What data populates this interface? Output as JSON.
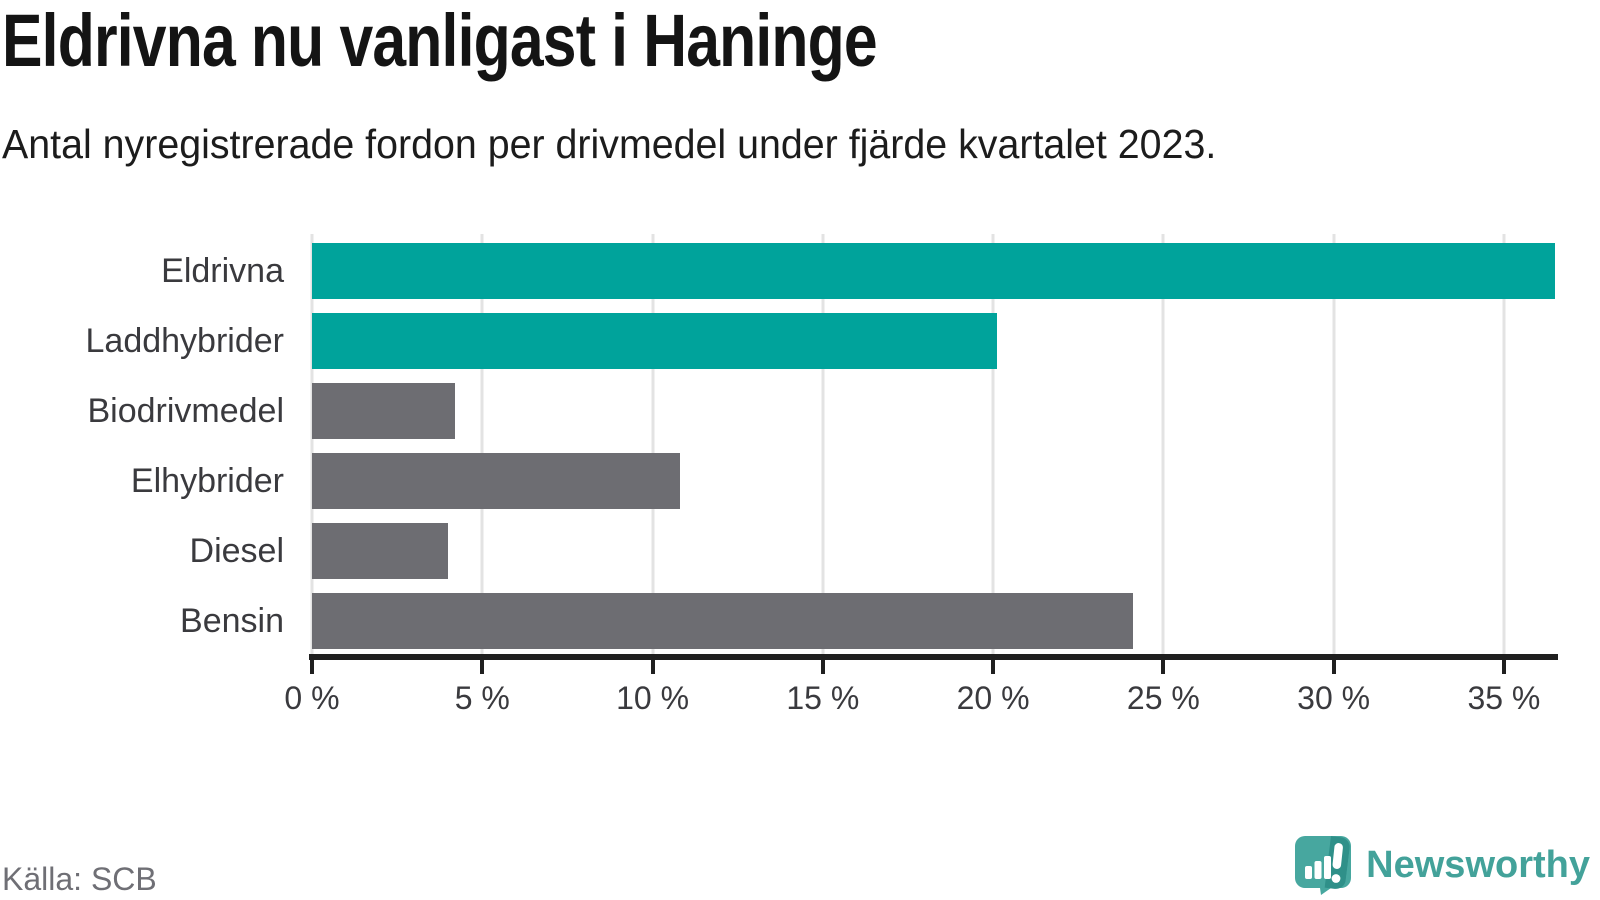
{
  "header": {
    "title": "Eldrivna nu vanligast i Haninge",
    "subtitle": "Antal nyregistrerade fordon per drivmedel under fjärde kvartalet 2023."
  },
  "footer": {
    "source": "Källa: SCB",
    "brand_name": "Newsworthy",
    "brand_icon": "newsworthy-speech-bubble-chart-icon"
  },
  "colors": {
    "teal": "#00a39b",
    "gray": "#6d6d72",
    "grid": "#e3e3e3",
    "axis": "#1f1f1f",
    "brand_teal": "#43a29a",
    "icon_teal": "#47a79f",
    "icon_teal_dark": "#2f9089"
  },
  "chart_data": {
    "type": "bar",
    "orientation": "horizontal",
    "title": "Eldrivna nu vanligast i Haninge",
    "subtitle": "Antal nyregistrerade fordon per drivmedel under fjärde kvartalet 2023.",
    "categories": [
      "Eldrivna",
      "Laddhybrider",
      "Biodrivmedel",
      "Elhybrider",
      "Diesel",
      "Bensin"
    ],
    "values": [
      36.5,
      20.1,
      4.2,
      10.8,
      4.0,
      24.1
    ],
    "unit": "%",
    "bar_colors": [
      "teal",
      "teal",
      "gray",
      "gray",
      "gray",
      "gray"
    ],
    "xlabel": "",
    "ylabel": "",
    "xlim": [
      0,
      36.5
    ],
    "x_ticks": [
      0,
      5,
      10,
      15,
      20,
      25,
      30,
      35
    ],
    "x_tick_labels": [
      "0 %",
      "5 %",
      "10 %",
      "15 %",
      "20 %",
      "25 %",
      "30 %",
      "35 %"
    ],
    "grid": true,
    "legend": false,
    "source": "SCB"
  }
}
